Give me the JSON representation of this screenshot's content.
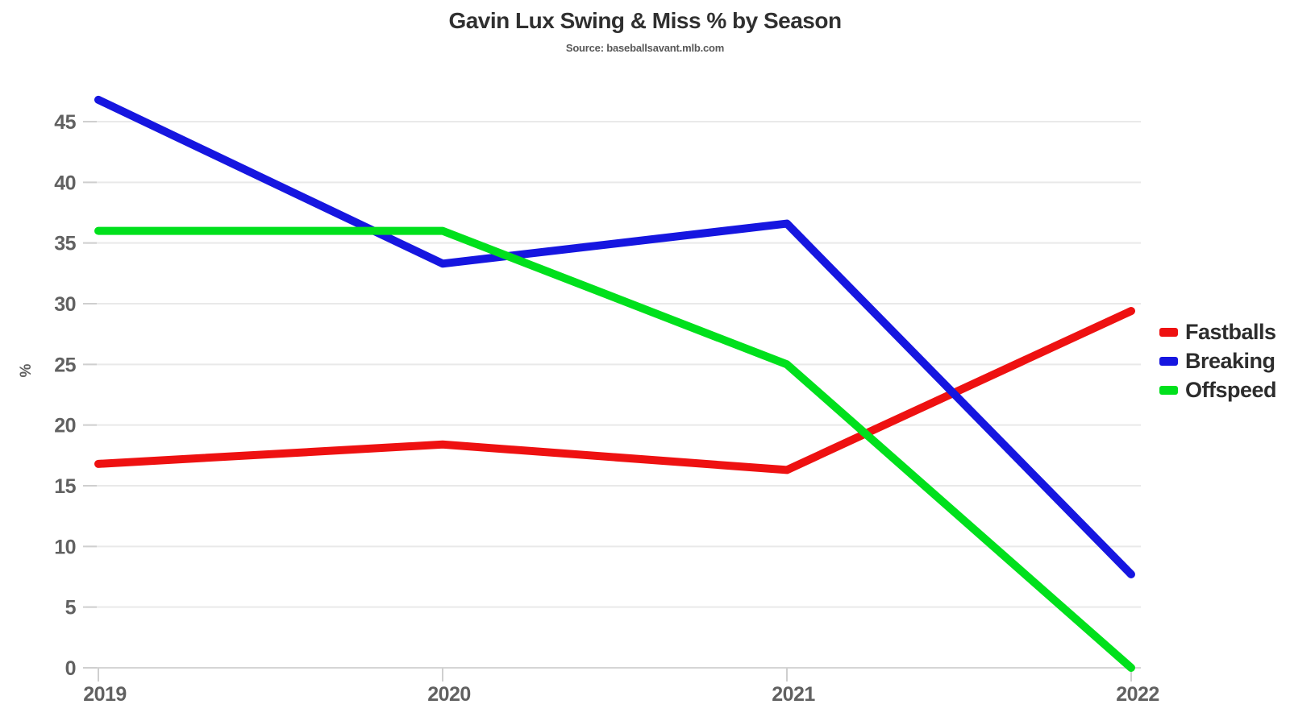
{
  "header": {
    "title": "Gavin Lux Swing & Miss % by Season",
    "subtitle": "Source: baseballsavant.mlb.com"
  },
  "chart_data": {
    "type": "line",
    "title": "Gavin Lux Swing & Miss % by Season",
    "subtitle": "Source: baseballsavant.mlb.com",
    "x": [
      2019,
      2020,
      2021,
      2022
    ],
    "x_tick_labels": [
      "2019",
      "2020",
      "2021",
      "2022"
    ],
    "series": [
      {
        "name": "Fastballs",
        "color": "#ee1111",
        "values": [
          16.8,
          18.4,
          16.3,
          29.4
        ]
      },
      {
        "name": "Breaking",
        "color": "#1616e0",
        "values": [
          46.8,
          33.3,
          36.6,
          7.7
        ]
      },
      {
        "name": "Offspeed",
        "color": "#00e01c",
        "values": [
          36.0,
          36.0,
          25.0,
          0.0
        ]
      }
    ],
    "xlabel": "",
    "ylabel": "%",
    "ylim": [
      0,
      47.5
    ],
    "yticks": [
      0,
      5,
      10,
      15,
      20,
      25,
      30,
      35,
      40,
      45
    ],
    "grid": true,
    "legend_position": "right-middle",
    "line_width": 10
  },
  "style": {
    "background": "#ffffff",
    "grid_color": "#e9e9e9",
    "zero_axis_color": "#d5d5d5",
    "tick_mark_color": "#cfcfcf",
    "tick_label_color": "#616161",
    "title_color": "#303030",
    "subtitle_color": "#585858",
    "legend_text_color": "#2d2d2d"
  }
}
